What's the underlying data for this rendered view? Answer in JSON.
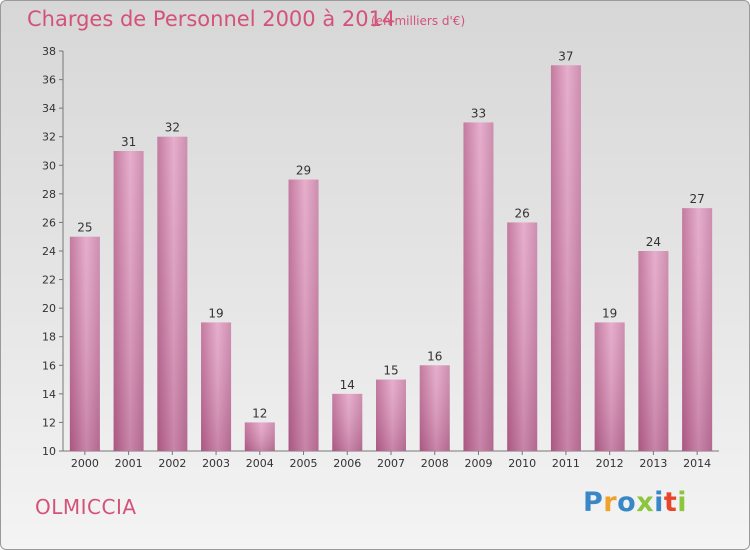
{
  "header": {
    "title": "Charges de Personnel 2000 à 2014",
    "unit": "(en milliers d'€)"
  },
  "footer": {
    "commune": "OLMICCIA",
    "logo_letters": [
      {
        "char": "P",
        "color": "#3a87c8"
      },
      {
        "char": "r",
        "color": "#f0a22c"
      },
      {
        "char": "o",
        "color": "#3a87c8"
      },
      {
        "char": "x",
        "color": "#8cc63f"
      },
      {
        "char": "i",
        "color": "#3a87c8"
      },
      {
        "char": "t",
        "color": "#e8462a"
      },
      {
        "char": "i",
        "color": "#8cc63f"
      }
    ]
  },
  "chart_data": {
    "type": "bar",
    "title": "Charges de Personnel 2000 à 2014",
    "subtitle": "(en milliers d'€)",
    "categories": [
      "2000",
      "2001",
      "2002",
      "2003",
      "2004",
      "2005",
      "2006",
      "2007",
      "2008",
      "2009",
      "2010",
      "2011",
      "2012",
      "2013",
      "2014"
    ],
    "values": [
      25,
      31,
      32,
      19,
      12,
      29,
      14,
      15,
      16,
      33,
      26,
      37,
      19,
      24,
      27
    ],
    "ylim": [
      10,
      38
    ],
    "yticks": [
      10,
      12,
      14,
      16,
      18,
      20,
      22,
      24,
      26,
      28,
      30,
      32,
      34,
      36,
      38
    ],
    "grid": false,
    "bar_color": "#c46b9a",
    "bar_highlight": "#e6a6c9"
  }
}
